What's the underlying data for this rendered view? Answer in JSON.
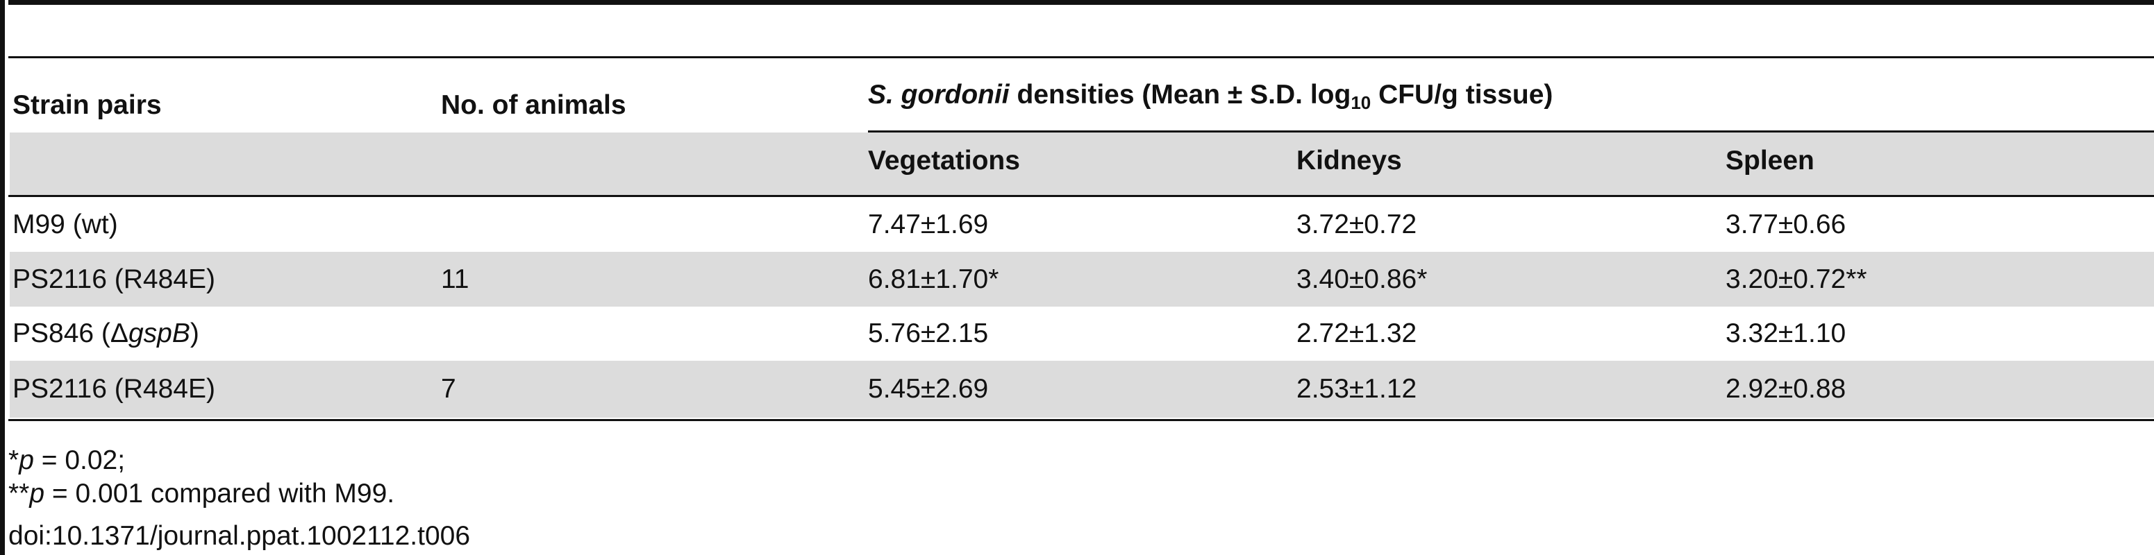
{
  "table": {
    "header": {
      "strain": "Strain pairs",
      "animals": "No. of animals",
      "spanning": {
        "italic": "S. gordonii",
        "text": " densities (Mean ± S.D. log",
        "sub": "10",
        "tail": " CFU/g tissue)"
      },
      "columns": [
        "Vegetations",
        "Kidneys",
        "Spleen"
      ]
    },
    "rows": [
      {
        "strain": [
          "M99 (wt)"
        ],
        "values": [
          "7.47±1.69",
          "3.72±0.72",
          "3.77±0.66"
        ]
      },
      {
        "strain": [
          "PS2116 (R484E)"
        ],
        "animals": "11",
        "values": [
          "6.81±1.70*",
          "3.40±0.86*",
          "3.20±0.72**"
        ]
      },
      {
        "strain": [
          "PS846 (Δ",
          "gspB",
          ")"
        ],
        "values": [
          "5.76±2.15",
          "2.72±1.32",
          "3.32±1.10"
        ]
      },
      {
        "strain": [
          "PS2116 (R484E)"
        ],
        "animals": "7",
        "values": [
          "5.45±2.69",
          "2.53±1.12",
          "2.92±0.88"
        ]
      }
    ]
  },
  "footnotes": [
    [
      "*",
      "p",
      " = 0.02;"
    ],
    [
      "**",
      "p",
      " = 0.001 compared with M99."
    ],
    [
      "doi:10.1371/journal.ppat.1002112.t006"
    ]
  ]
}
